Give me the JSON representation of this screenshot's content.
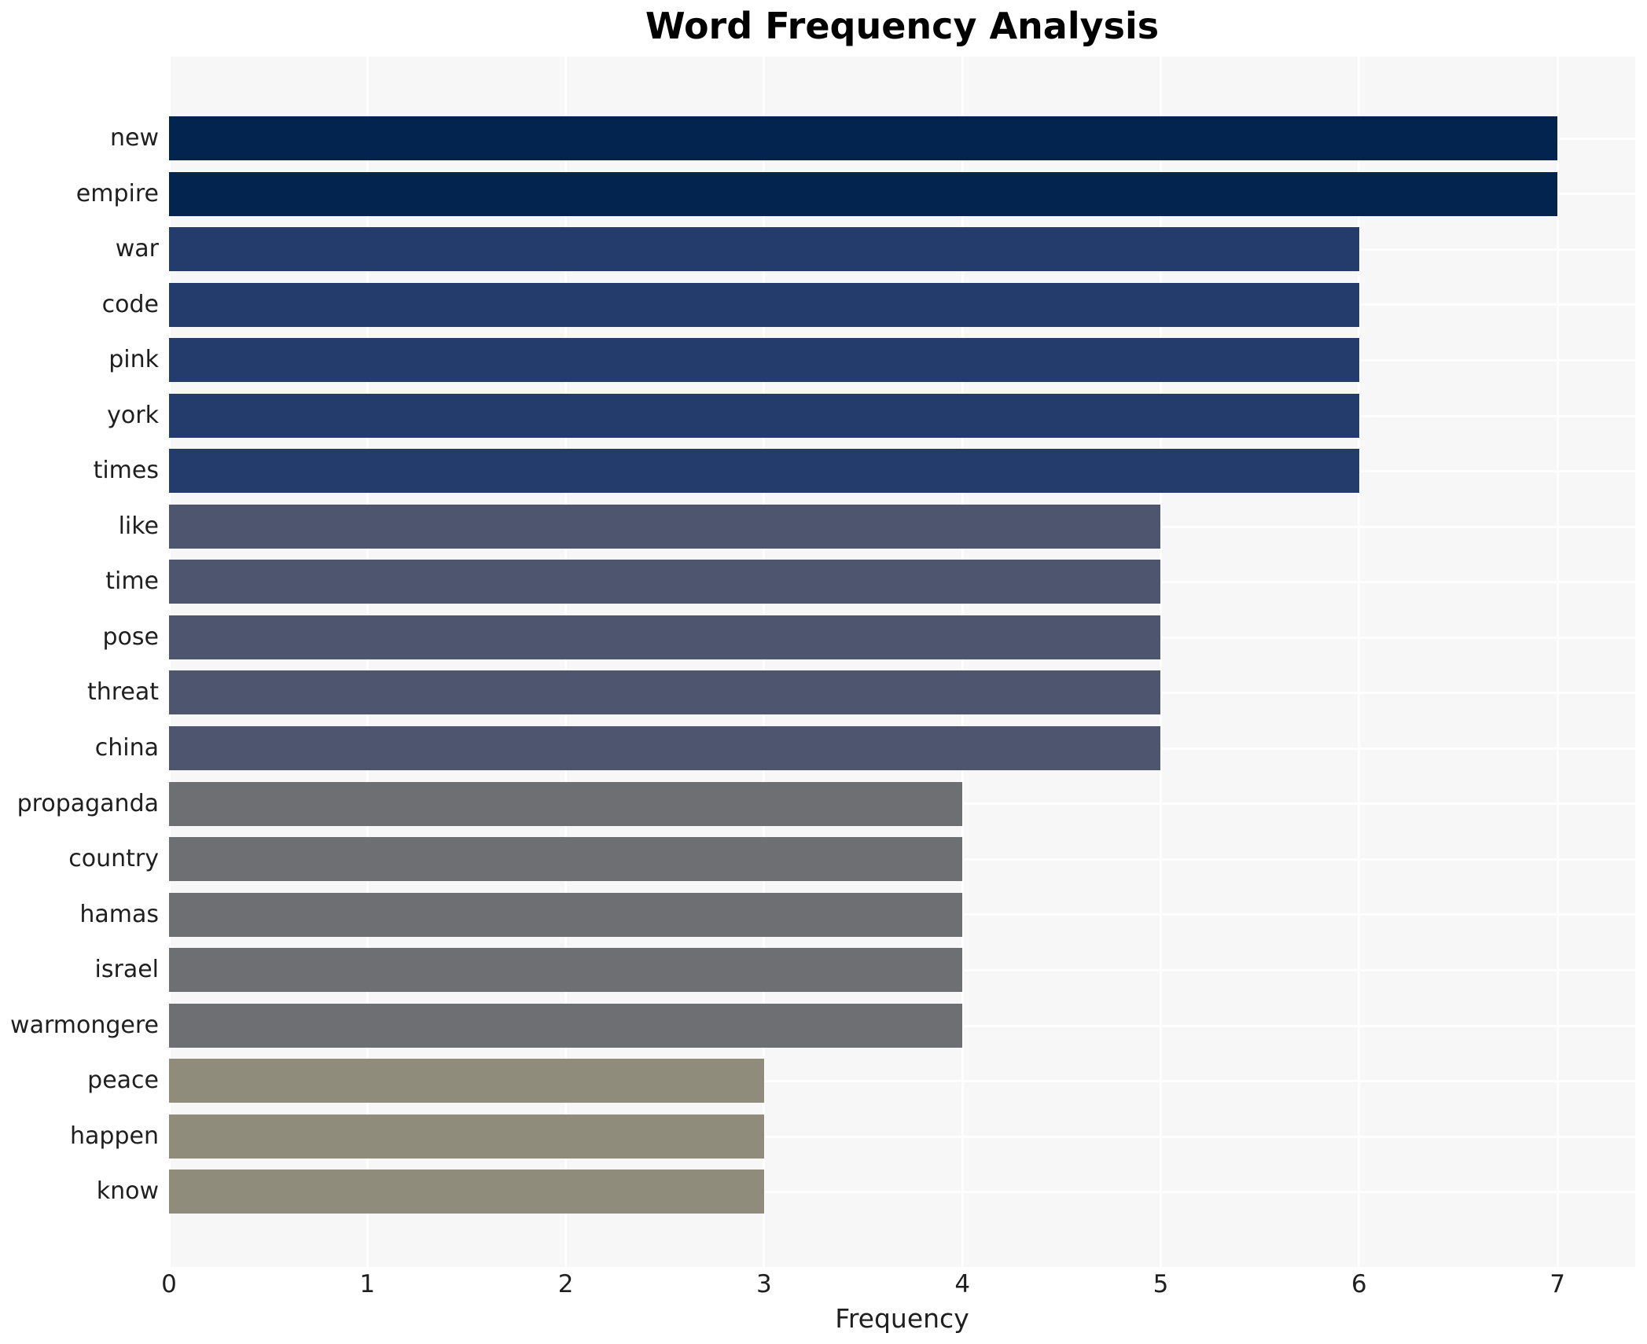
{
  "chart_data": {
    "type": "bar",
    "orientation": "horizontal",
    "title": "Word Frequency Analysis",
    "xlabel": "Frequency",
    "ylabel": "",
    "xlim": [
      0,
      7.4
    ],
    "xticks": [
      0,
      1,
      2,
      3,
      4,
      5,
      6,
      7
    ],
    "grid": true,
    "legend": false,
    "plot_background": "#f7f7f7",
    "grid_color": "#ffffff",
    "text_color": "#1f1f1f",
    "categories": [
      "new",
      "empire",
      "war",
      "code",
      "pink",
      "york",
      "times",
      "like",
      "time",
      "pose",
      "threat",
      "china",
      "propaganda",
      "country",
      "hamas",
      "israel",
      "warmongere",
      "peace",
      "happen",
      "know"
    ],
    "values": [
      7,
      7,
      6,
      6,
      6,
      6,
      6,
      5,
      5,
      5,
      5,
      5,
      4,
      4,
      4,
      4,
      4,
      3,
      3,
      3
    ],
    "color_by_value": {
      "7": "#03244F",
      "6": "#233C6B",
      "5": "#4D566E",
      "4": "#6E6F72",
      "3": "#908C7B"
    }
  }
}
